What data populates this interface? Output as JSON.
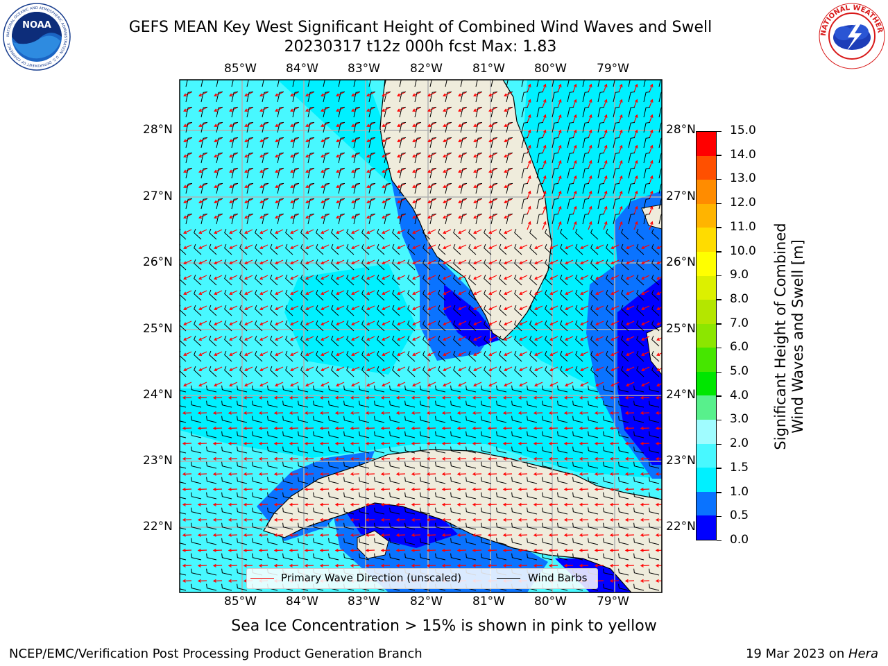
{
  "title": {
    "line1": "GEFS MEAN Key West Significant Height of Combined Wind Waves and Swell",
    "line2": "20230317 t12z 000h fcst   Max: 1.83"
  },
  "logos": {
    "noaa_text": "NOAA",
    "noaa_ring": "NATIONAL OCEANIC AND ATMOSPHERIC ADMINISTRATION · U.S. DEPARTMENT OF COMMERCE",
    "nws_ring": "NATIONAL WEATHER SERVICE"
  },
  "map": {
    "lon_labels": [
      "85°W",
      "84°W",
      "83°W",
      "82°W",
      "81°W",
      "80°W",
      "79°W"
    ],
    "lat_labels": [
      "28°N",
      "27°N",
      "26°N",
      "25°N",
      "24°N",
      "23°N",
      "22°N"
    ],
    "extent": {
      "lon_min": -86.0,
      "lon_max": -78.25,
      "lat_min": 21.0,
      "lat_max": 28.75
    },
    "land_color": "#efecdc",
    "grid_color": "#b0b0b0"
  },
  "legend": {
    "wave_direction": "Primary Wave Direction (unscaled)",
    "wind_barbs": "Wind Barbs",
    "wave_color": "#ff0000",
    "barb_color": "#000000"
  },
  "colorbar": {
    "label_line1": "Significant Height of Combined",
    "label_line2": "Wind Waves and Swell [m]",
    "ticks": [
      "0.0",
      "0.5",
      "1.0",
      "1.5",
      "2.0",
      "3.0",
      "4.0",
      "5.0",
      "6.0",
      "7.0",
      "8.0",
      "9.0",
      "10.0",
      "11.0",
      "12.0",
      "13.0",
      "14.0",
      "15.0"
    ],
    "colors": [
      "#0000ff",
      "#0a73ff",
      "#00f0ff",
      "#48f8ff",
      "#a0fcff",
      "#58f08c",
      "#00e600",
      "#46e600",
      "#8ce600",
      "#b4e600",
      "#dcf000",
      "#ffff00",
      "#ffdc00",
      "#ffb400",
      "#ff8c00",
      "#ff5000",
      "#ff0000"
    ]
  },
  "note": "Sea Ice Concentration > 15% is shown in pink to yellow",
  "footer": {
    "left": "NCEP/EMC/Verification Post Processing Product Generation Branch",
    "right_prefix": "19 Mar 2023 on ",
    "right_host": "Hera"
  }
}
